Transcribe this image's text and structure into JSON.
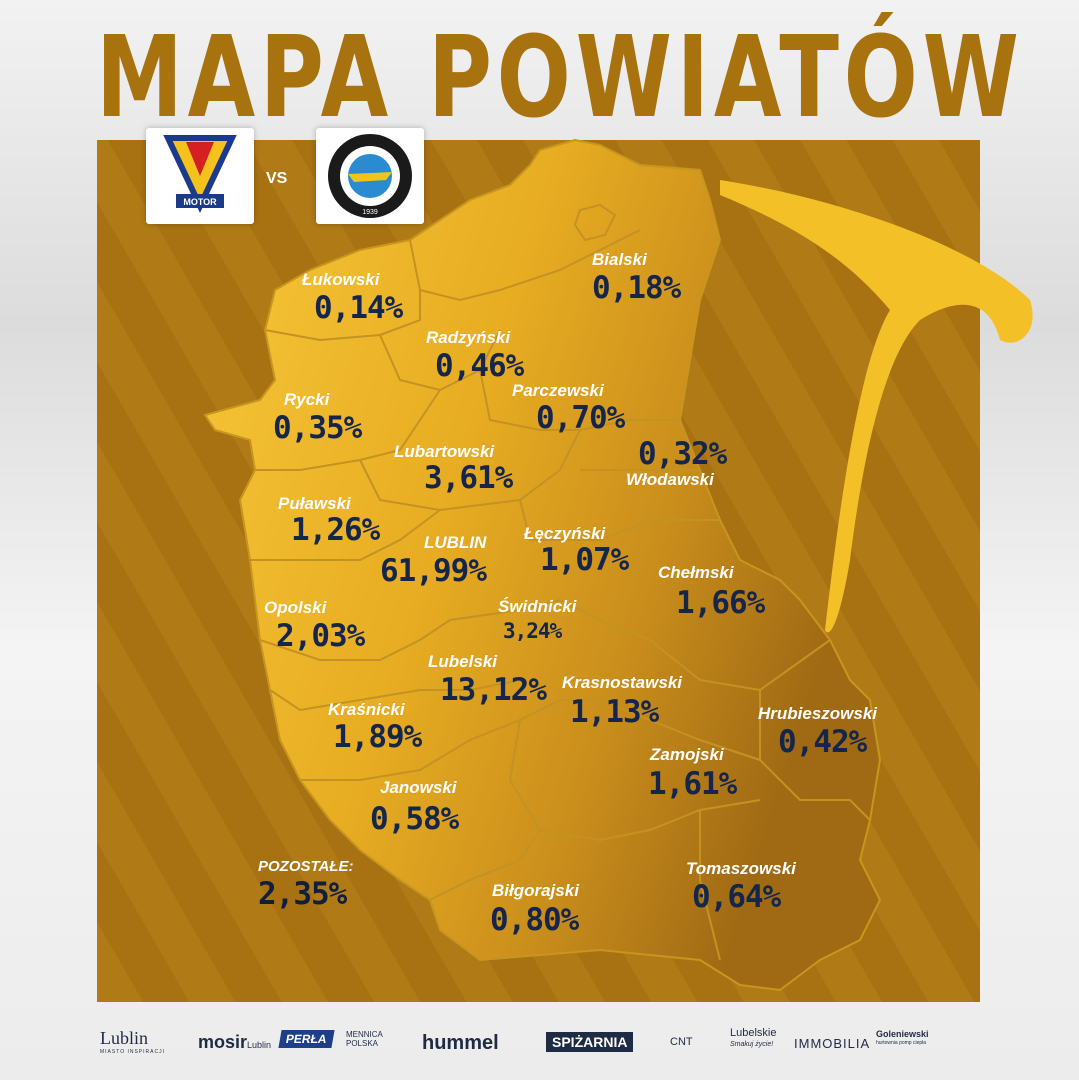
{
  "title": "MAPA POWIATÓW",
  "vs_text": "VS",
  "team_home": {
    "name": "MOTOR"
  },
  "team_away": {
    "name": "STAL MIELEC",
    "year": "1939"
  },
  "colors": {
    "gold": "#f2b21e",
    "mustard": "#b07a16",
    "dark_text": "#15264a",
    "label_text": "#ffffff"
  },
  "regions": [
    {
      "id": "lukowski",
      "label": "Łukowski",
      "value": "0,14%"
    },
    {
      "id": "bialski",
      "label": "Bialski",
      "value": "0,18%"
    },
    {
      "id": "radzynski",
      "label": "Radzyński",
      "value": "0,46%"
    },
    {
      "id": "rycki",
      "label": "Rycki",
      "value": "0,35%"
    },
    {
      "id": "parczewski",
      "label": "Parczewski",
      "value": "0,70%"
    },
    {
      "id": "wlodawski",
      "label": "Włodawski",
      "value": "0,32%"
    },
    {
      "id": "lubartowski",
      "label": "Lubartowski",
      "value": "3,61%"
    },
    {
      "id": "pulawski",
      "label": "Puławski",
      "value": "1,26%"
    },
    {
      "id": "lublin",
      "label": "LUBLIN",
      "value": "61,99%"
    },
    {
      "id": "leczynski",
      "label": "Łęczyński",
      "value": "1,07%"
    },
    {
      "id": "chelmski",
      "label": "Chełmski",
      "value": "1,66%"
    },
    {
      "id": "opolski",
      "label": "Opolski",
      "value": "2,03%"
    },
    {
      "id": "swidnicki",
      "label": "Świdnicki",
      "value": "3,24%"
    },
    {
      "id": "lubelski",
      "label": "Lubelski",
      "value": "13,12%"
    },
    {
      "id": "krasnostawski",
      "label": "Krasnostawski",
      "value": "1,13%"
    },
    {
      "id": "krasnicki",
      "label": "Kraśnicki",
      "value": "1,89%"
    },
    {
      "id": "hrubieszowski",
      "label": "Hrubieszowski",
      "value": "0,42%"
    },
    {
      "id": "zamojski",
      "label": "Zamojski",
      "value": "1,61%"
    },
    {
      "id": "janowski",
      "label": "Janowski",
      "value": "0,58%"
    },
    {
      "id": "pozostale",
      "label": "POZOSTAŁE:",
      "value": "2,35%"
    },
    {
      "id": "bilgorajski",
      "label": "Biłgorajski",
      "value": "0,80%"
    },
    {
      "id": "tomaszowski",
      "label": "Tomaszowski",
      "value": "0,64%"
    }
  ],
  "sponsors": [
    {
      "name": "Lublin",
      "tagline": "MIASTO INSPIRACJI"
    },
    {
      "name": "mosir",
      "suffix": "Lublin"
    },
    {
      "name": "PERŁA"
    },
    {
      "name": "MENNICA POLSKA"
    },
    {
      "name": "hummel"
    },
    {
      "name": "SPIŻARNIA"
    },
    {
      "name": "CNT"
    },
    {
      "name": "Lubelskie",
      "tagline": "Smakuj życie!"
    },
    {
      "name": "IMMOBILIA"
    },
    {
      "name": "Goleniewski",
      "tagline": "hurtownia pomp ciepła"
    }
  ]
}
